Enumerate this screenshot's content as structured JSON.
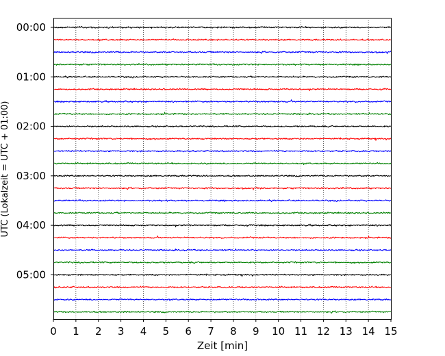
{
  "chart_data": {
    "type": "line",
    "title": "",
    "xlabel": "Zeit  [min]",
    "ylabel": "UTC (Lokalzeit = UTC + 01:00)",
    "xlim": [
      0,
      15
    ],
    "xticks": [
      0,
      1,
      2,
      3,
      4,
      5,
      6,
      7,
      8,
      9,
      10,
      11,
      12,
      13,
      14,
      15
    ],
    "xtick_labels": [
      "0",
      "1",
      "2",
      "3",
      "4",
      "5",
      "6",
      "7",
      "8",
      "9",
      "10",
      "11",
      "12",
      "13",
      "14",
      "15"
    ],
    "ytick_labels": [
      "00:00",
      "01:00",
      "02:00",
      "03:00",
      "04:00",
      "05:00"
    ],
    "ytick_trace_index": [
      0,
      4,
      8,
      12,
      16,
      20
    ],
    "trace_minutes": 15,
    "trace_count": 24,
    "trace_start_times": [
      "00:00",
      "00:15",
      "00:30",
      "00:45",
      "01:00",
      "01:15",
      "01:30",
      "01:45",
      "02:00",
      "02:15",
      "02:30",
      "02:45",
      "03:00",
      "03:15",
      "03:30",
      "03:45",
      "04:00",
      "04:15",
      "04:30",
      "04:45",
      "05:00",
      "05:15",
      "05:30",
      "05:45"
    ],
    "trace_colors": [
      "#000000",
      "#ff0000",
      "#0000ff",
      "#008000"
    ],
    "grid": "vertical dotted at each minute",
    "signal": "seismic noise, low amplitude, roughly uniform"
  }
}
